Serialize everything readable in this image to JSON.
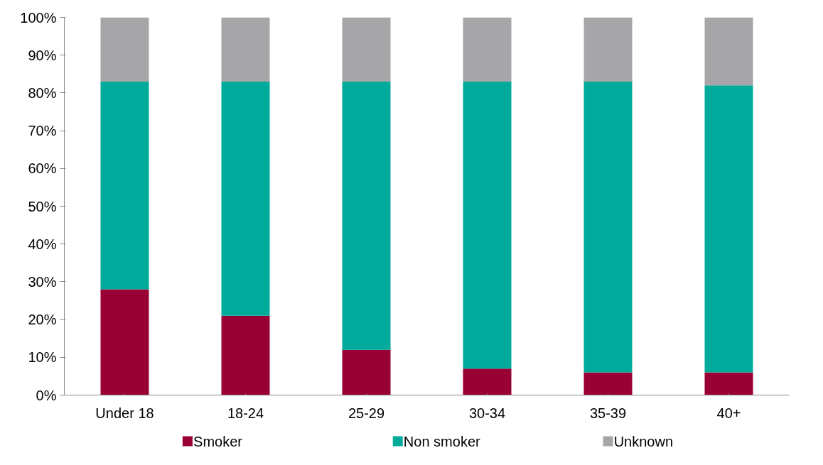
{
  "chart_data": {
    "type": "bar",
    "stacked": true,
    "categories": [
      "Under 18",
      "18-24",
      "25-29",
      "30-34",
      "35-39",
      "40+"
    ],
    "series": [
      {
        "name": "Smoker",
        "color": "#990033",
        "values": [
          28,
          21,
          12,
          7,
          6,
          6
        ]
      },
      {
        "name": "Non smoker",
        "color": "#00ab9c",
        "values": [
          55,
          62,
          71,
          76,
          77,
          76
        ]
      },
      {
        "name": "Unknown",
        "color": "#a6a6a9",
        "values": [
          17,
          17,
          17,
          17,
          17,
          18
        ]
      }
    ],
    "ylim": [
      0,
      100
    ],
    "yticks": [
      {
        "value": 0,
        "label": "0%"
      },
      {
        "value": 10,
        "label": "10%"
      },
      {
        "value": 20,
        "label": "20%"
      },
      {
        "value": 30,
        "label": "30%"
      },
      {
        "value": 40,
        "label": "40%"
      },
      {
        "value": 50,
        "label": "50%"
      },
      {
        "value": 60,
        "label": "60%"
      },
      {
        "value": 70,
        "label": "70%"
      },
      {
        "value": 80,
        "label": "80%"
      },
      {
        "value": 90,
        "label": "90%"
      },
      {
        "value": 100,
        "label": "100%"
      }
    ],
    "grid": false,
    "legend": "bottom"
  }
}
